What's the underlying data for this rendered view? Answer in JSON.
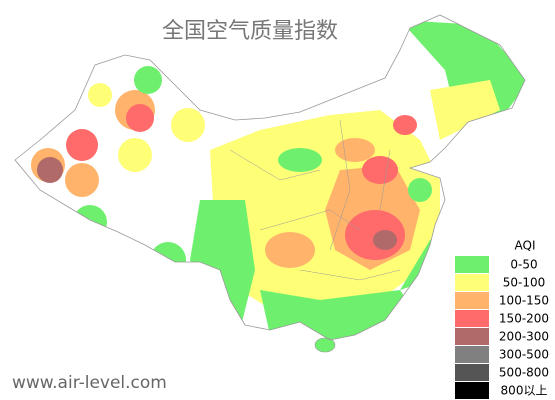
{
  "title": "全国空气质量指数",
  "legend": {
    "title": "AQI",
    "items": [
      {
        "label": "0-50",
        "color": "#6ef06e"
      },
      {
        "label": "50-100",
        "color": "#ffff77"
      },
      {
        "label": "100-150",
        "color": "#ffb36b"
      },
      {
        "label": "150-200",
        "color": "#ff6a6a"
      },
      {
        "label": "200-300",
        "color": "#b06a6a"
      },
      {
        "label": "300-500",
        "color": "#808080"
      },
      {
        "label": "500-800",
        "color": "#555555"
      },
      {
        "label": "800以上",
        "color": "#000000"
      }
    ]
  },
  "watermark": "www.air-level.com"
}
